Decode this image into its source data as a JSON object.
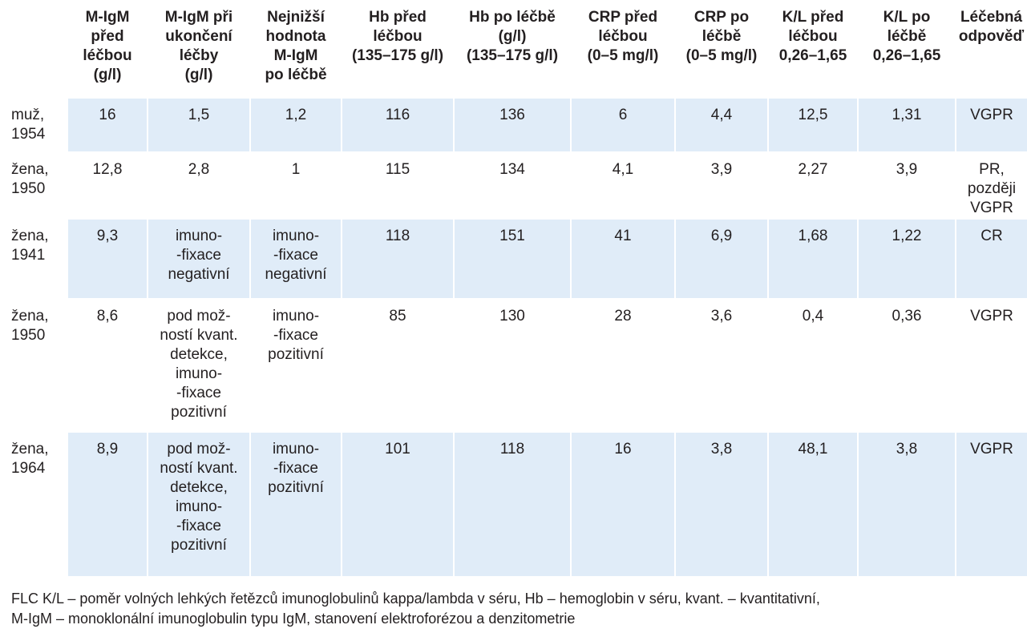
{
  "headers": [
    {
      "lines": [
        ""
      ]
    },
    {
      "lines": [
        "M-IgM",
        "před",
        "léčbou",
        "(g/l)"
      ]
    },
    {
      "lines": [
        "M-IgM při",
        "ukončení",
        "léčby",
        "(g/l)"
      ]
    },
    {
      "lines": [
        "Nejnižší",
        "hodnota",
        "M-IgM",
        "po léčbě"
      ]
    },
    {
      "lines": [
        "Hb před",
        "léčbou",
        "(135–175 g/l)"
      ]
    },
    {
      "lines": [
        "Hb po léčbě",
        "(g/l)",
        "(135–175 g/l)"
      ]
    },
    {
      "lines": [
        "CRP před",
        "léčbou",
        "(0–5 mg/l)"
      ]
    },
    {
      "lines": [
        "CRP po",
        "léčbě",
        "(0–5 mg/l)"
      ]
    },
    {
      "lines": [
        "K/L před",
        "léčbou",
        "0,26–1,65"
      ]
    },
    {
      "lines": [
        "K/L po",
        "léčbě",
        "0,26–1,65"
      ]
    },
    {
      "lines": [
        "Léčebná",
        "odpověď"
      ]
    }
  ],
  "rows": [
    {
      "patient": [
        "muž,",
        "1954"
      ],
      "migm_before": [
        "16"
      ],
      "migm_end": [
        "1,5"
      ],
      "migm_min": [
        "1,2"
      ],
      "hb_before": [
        "116"
      ],
      "hb_after": [
        "136"
      ],
      "crp_before": [
        "6"
      ],
      "crp_after": [
        "4,4"
      ],
      "kl_before": [
        "12,5"
      ],
      "kl_after": [
        "1,31"
      ],
      "response": [
        "VGPR"
      ]
    },
    {
      "patient": [
        "žena,",
        "1950"
      ],
      "migm_before": [
        "12,8"
      ],
      "migm_end": [
        "2,8"
      ],
      "migm_min": [
        "1"
      ],
      "hb_before": [
        "115"
      ],
      "hb_after": [
        "134"
      ],
      "crp_before": [
        "4,1"
      ],
      "crp_after": [
        "3,9"
      ],
      "kl_before": [
        "2,27"
      ],
      "kl_after": [
        "3,9"
      ],
      "response": [
        "PR, později",
        "VGPR"
      ]
    },
    {
      "patient": [
        "žena,",
        "1941"
      ],
      "migm_before": [
        "9,3"
      ],
      "migm_end": [
        "imuno-",
        "-fixace",
        "negativní"
      ],
      "migm_min": [
        "imuno-",
        "-fixace",
        "negativní"
      ],
      "hb_before": [
        "118"
      ],
      "hb_after": [
        "151"
      ],
      "crp_before": [
        "41"
      ],
      "crp_after": [
        "6,9"
      ],
      "kl_before": [
        "1,68"
      ],
      "kl_after": [
        "1,22"
      ],
      "response": [
        "CR"
      ]
    },
    {
      "patient": [
        "žena,",
        "1950"
      ],
      "migm_before": [
        "8,6"
      ],
      "migm_end": [
        "pod mož-",
        "ností kvant.",
        "detekce,",
        "imuno-",
        "-fixace",
        "pozitivní"
      ],
      "migm_min": [
        "imuno-",
        "-fixace",
        "pozitivní"
      ],
      "hb_before": [
        "85"
      ],
      "hb_after": [
        "130"
      ],
      "crp_before": [
        "28"
      ],
      "crp_after": [
        "3,6"
      ],
      "kl_before": [
        "0,4"
      ],
      "kl_after": [
        "0,36"
      ],
      "response": [
        "VGPR"
      ]
    },
    {
      "patient": [
        "žena,",
        "1964"
      ],
      "migm_before": [
        "8,9"
      ],
      "migm_end": [
        "pod mož-",
        "ností kvant.",
        "detekce,",
        "imuno-",
        "-fixace",
        "pozitivní"
      ],
      "migm_min": [
        "imuno-",
        "-fixace",
        "pozitivní"
      ],
      "hb_before": [
        "101"
      ],
      "hb_after": [
        "118"
      ],
      "crp_before": [
        "16"
      ],
      "crp_after": [
        "3,8"
      ],
      "kl_before": [
        "48,1"
      ],
      "kl_after": [
        "3,8"
      ],
      "response": [
        "VGPR"
      ]
    }
  ],
  "footnote": [
    "FLC K/L – poměr volných lehkých řetězců imunoglobulinů kappa/lambda v séru, Hb – hemoglobin v séru, kvant. – kvantitativní,",
    "M-IgM – monoklonální imunoglobulin typu IgM, stanovení elektroforézou a denzitometrie"
  ],
  "colors": {
    "row_shade": "#e0ecf8",
    "text": "#231f20"
  }
}
